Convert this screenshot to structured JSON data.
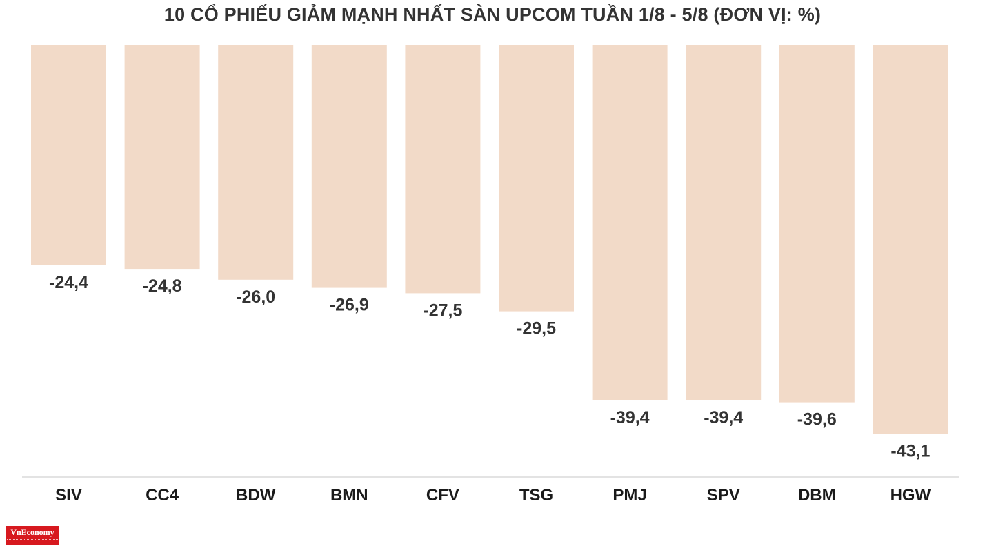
{
  "chart_data": {
    "type": "bar",
    "title": "10 CỔ PHIẾU GIẢM MẠNH NHẤT SÀN UPCOM TUẦN 1/8 - 5/8 (ĐƠN VỊ: %)",
    "categories": [
      "SIV",
      "CC4",
      "BDW",
      "BMN",
      "CFV",
      "TSG",
      "PMJ",
      "SPV",
      "DBM",
      "HGW"
    ],
    "values": [
      -24.4,
      -24.8,
      -26.0,
      -26.9,
      -27.5,
      -29.5,
      -39.4,
      -39.4,
      -39.6,
      -43.1
    ],
    "value_labels": [
      "-24,4",
      "-24,8",
      "-26,0",
      "-26,9",
      "-27,5",
      "-29,5",
      "-39,4",
      "-39,4",
      "-39,6",
      "-43,1"
    ],
    "bar_color": "#f2dac8",
    "xlabel": "",
    "ylabel": "",
    "grid": false,
    "legend": "none"
  },
  "brand": {
    "logo_text": "VnEconomy",
    "logo_color": "#d7191f"
  }
}
